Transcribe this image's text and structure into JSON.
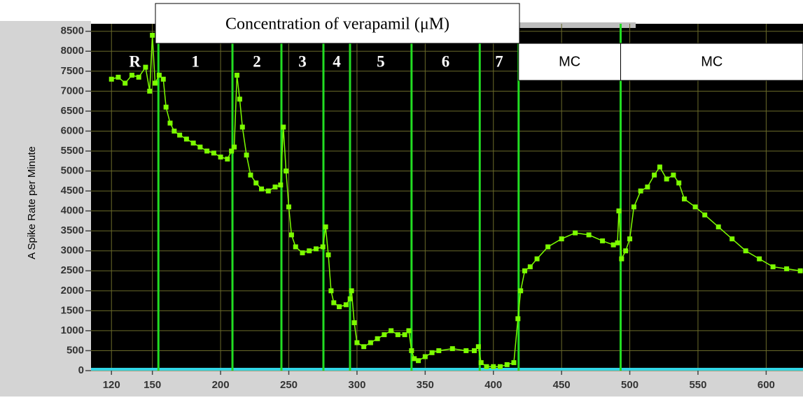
{
  "chart_data": {
    "type": "line",
    "title": "Concentration of verapamil (μM)",
    "y_label": "A Spike Rate per Minute",
    "xlim": [
      105,
      627
    ],
    "ylim": [
      0,
      8600
    ],
    "xticks": [
      120,
      150,
      200,
      250,
      300,
      350,
      400,
      450,
      500,
      550,
      600
    ],
    "yticks": [
      0,
      500,
      1000,
      1500,
      2000,
      2500,
      3000,
      3500,
      4000,
      4500,
      5000,
      5500,
      6000,
      6500,
      7000,
      7500,
      8000,
      8500
    ],
    "grid": true,
    "markers": [
      154.4,
      208.7,
      244.6,
      275.4,
      294.9,
      340,
      390,
      418.5,
      493.3
    ],
    "regions": [
      "R",
      "1",
      "2",
      "3",
      "4",
      "5",
      "6",
      "7",
      "MC",
      "MC"
    ],
    "x": [
      120,
      125,
      130,
      135,
      140,
      145,
      148,
      150,
      152,
      155,
      158,
      160,
      163,
      166,
      170,
      175,
      180,
      185,
      190,
      195,
      200,
      205,
      208,
      210,
      212,
      214,
      216,
      219,
      222,
      226,
      230,
      235,
      240,
      244,
      246,
      248,
      250,
      252,
      255,
      260,
      265,
      270,
      275,
      277,
      279,
      281,
      283,
      287,
      292,
      295,
      296,
      298,
      300,
      305,
      310,
      315,
      320,
      325,
      330,
      335,
      338,
      340,
      342,
      345,
      350,
      355,
      360,
      370,
      380,
      386,
      389,
      391,
      395,
      400,
      405,
      410,
      415,
      418,
      420,
      423,
      427,
      432,
      440,
      450,
      460,
      470,
      480,
      488,
      491,
      492,
      494,
      497,
      500,
      503,
      508,
      513,
      518,
      522,
      527,
      532,
      536,
      540,
      548,
      555,
      565,
      575,
      585,
      595,
      605,
      615,
      625
    ],
    "series": [
      {
        "color": "#7cfc00",
        "values": [
          7300,
          7350,
          7200,
          7400,
          7350,
          7600,
          7000,
          8400,
          7200,
          7400,
          7300,
          6600,
          6200,
          6000,
          5900,
          5800,
          5700,
          5600,
          5500,
          5450,
          5350,
          5300,
          5500,
          5600,
          7400,
          6800,
          6100,
          5400,
          4900,
          4700,
          4550,
          4500,
          4600,
          4650,
          6100,
          5000,
          4100,
          3400,
          3100,
          2950,
          3000,
          3050,
          3100,
          3600,
          2900,
          2000,
          1700,
          1600,
          1650,
          1800,
          2000,
          1200,
          700,
          600,
          700,
          800,
          900,
          1000,
          900,
          900,
          1000,
          500,
          300,
          250,
          350,
          450,
          500,
          550,
          500,
          500,
          600,
          200,
          100,
          100,
          100,
          150,
          200,
          1300,
          2000,
          2500,
          2600,
          2800,
          3100,
          3300,
          3450,
          3400,
          3250,
          3150,
          3200,
          4000,
          2800,
          3000,
          3300,
          4100,
          4500,
          4600,
          4900,
          5100,
          4800,
          4900,
          4700,
          4300,
          4100,
          3900,
          3600,
          3300,
          3000,
          2800,
          2600,
          2550,
          2500
        ]
      }
    ]
  }
}
